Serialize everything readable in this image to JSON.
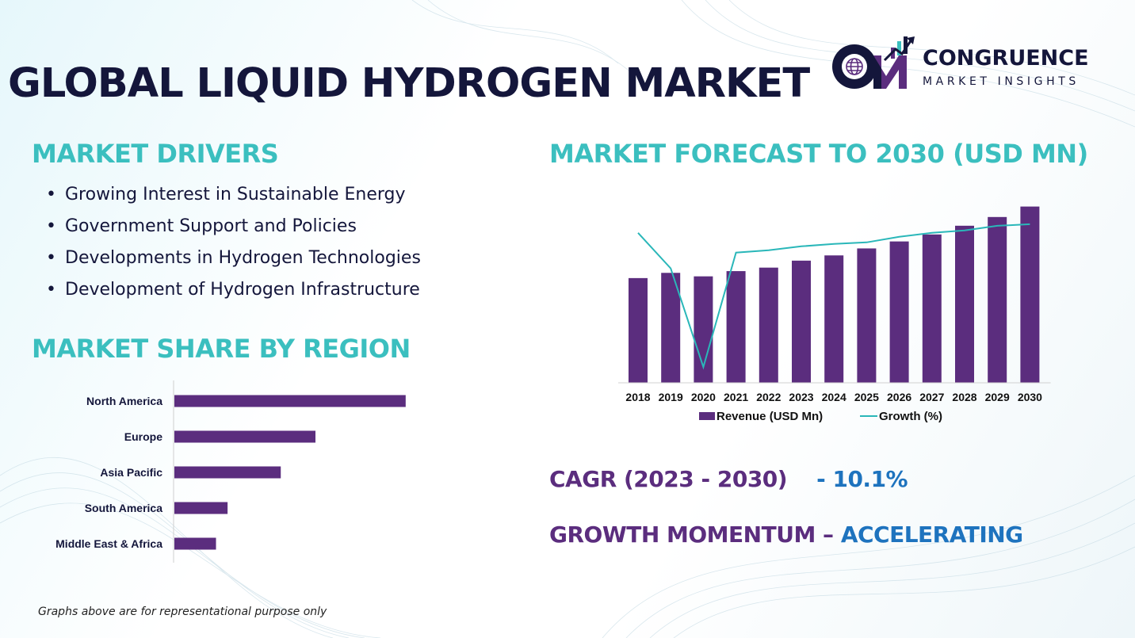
{
  "title": "GLOBAL LIQUID HYDROGEN MARKET",
  "brand": {
    "name": "CONGRUENCE",
    "tagline": "MARKET INSIGHTS",
    "monogram": "CM"
  },
  "drivers": {
    "title": "MARKET DRIVERS",
    "items": [
      "Growing Interest in Sustainable Energy",
      "Government Support and Policies",
      "Developments in Hydrogen Technologies",
      "Development of Hydrogen Infrastructure"
    ]
  },
  "region_section": {
    "title": "MARKET SHARE BY REGION"
  },
  "forecast_section": {
    "title": "MARKET FORECAST TO 2030 (USD MN)"
  },
  "stats": {
    "cagr_label": "CAGR (2023 - 2030)",
    "cagr_value": "- 10.1%",
    "momentum_label": "GROWTH MOMENTUM –",
    "momentum_value": "ACCELERATING"
  },
  "footnote": "Graphs above are for representational purpose only",
  "colors": {
    "navy": "#14163b",
    "teal": "#3bbfbf",
    "purple": "#5b2d7e",
    "blue": "#1e73be",
    "line": "#2ab7b9"
  },
  "chart_data": [
    {
      "type": "bar",
      "orientation": "horizontal",
      "categories": [
        "North America",
        "Europe",
        "Asia Pacific",
        "South America",
        "Middle East & Africa"
      ],
      "values": [
        100,
        61,
        46,
        23,
        18
      ],
      "xlim": [
        0,
        110
      ],
      "grid": false,
      "legend": "none"
    },
    {
      "type": "bar",
      "categories": [
        "2018",
        "2019",
        "2020",
        "2021",
        "2022",
        "2023",
        "2024",
        "2025",
        "2026",
        "2027",
        "2028",
        "2029",
        "2030"
      ],
      "series": [
        {
          "name": "Revenue (USD Mn)",
          "type": "bar",
          "values": [
            60,
            63,
            61,
            64,
            66,
            70,
            73,
            77,
            81,
            85,
            90,
            95,
            101
          ]
        },
        {
          "name": "Growth (%)",
          "type": "line",
          "values": [
            9.0,
            4.5,
            -8.0,
            6.5,
            6.8,
            7.3,
            7.6,
            7.8,
            8.5,
            9.0,
            9.3,
            9.9,
            10.1
          ]
        }
      ],
      "ylim": [
        0,
        104
      ],
      "y2lim": [
        -10,
        13
      ],
      "grid": false,
      "legend": "bottom"
    }
  ]
}
